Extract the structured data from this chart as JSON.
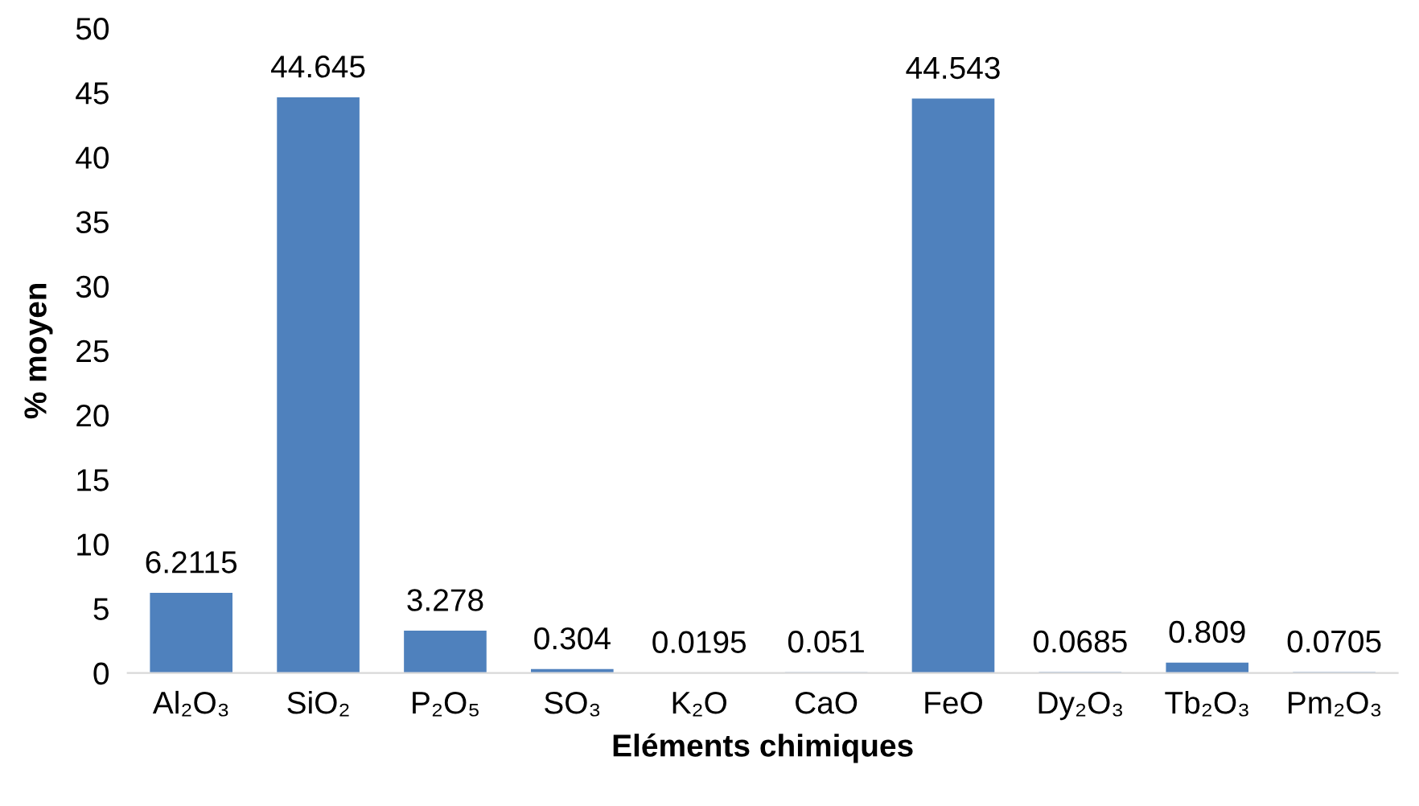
{
  "chart_data": {
    "type": "bar",
    "xlabel": "Eléments chimiques",
    "ylabel": "% moyen",
    "categories": [
      "Al₂O₃",
      "SiO₂",
      "P₂O₅",
      "SO₃",
      "K₂O",
      "CaO",
      "FeO",
      "Dy₂O₃",
      "Tb₂O₃",
      "Pm₂O₃"
    ],
    "values": [
      6.2115,
      44.645,
      3.278,
      0.304,
      0.0195,
      0.051,
      44.543,
      0.0685,
      0.809,
      0.0705
    ],
    "color": "#4f81bd",
    "ylim": [
      0,
      50
    ],
    "yticks": [
      0,
      5,
      10,
      15,
      20,
      25,
      30,
      35,
      40,
      45,
      50
    ],
    "data_labels": true,
    "grid": false,
    "legend": false
  }
}
